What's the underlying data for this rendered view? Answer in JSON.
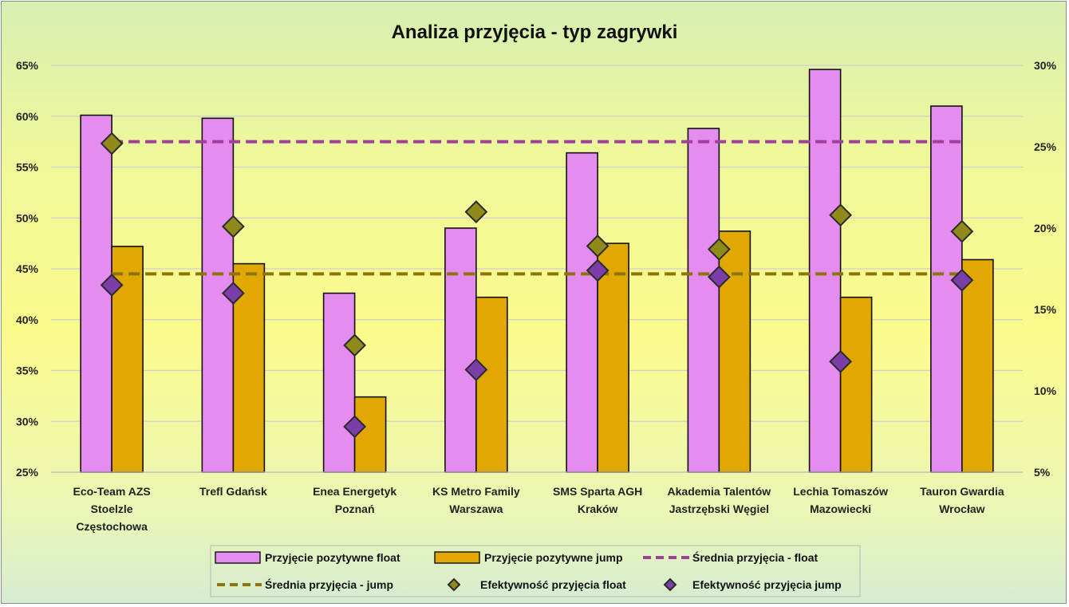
{
  "chart_data": {
    "type": "bar",
    "title": "Analiza przyjęcia - typ zagrywki",
    "categories": [
      [
        "Eco-Team AZS",
        "Stoelzle",
        "Częstochowa"
      ],
      [
        "Trefl Gdańsk"
      ],
      [
        "Enea Energetyk",
        "Poznań"
      ],
      [
        "KS Metro Family",
        "Warszawa"
      ],
      [
        "SMS Sparta AGH",
        "Kraków"
      ],
      [
        "Akademia Talentów",
        "Jastrzębski Węgiel"
      ],
      [
        "Lechia Tomaszów",
        "Mazowiecki"
      ],
      [
        "Tauron Gwardia",
        "Wrocław"
      ]
    ],
    "ylim_left": [
      0.25,
      0.65
    ],
    "yticks_left": [
      "25%",
      "30%",
      "35%",
      "40%",
      "45%",
      "50%",
      "55%",
      "60%",
      "65%"
    ],
    "ylim_right": [
      0.05,
      0.3
    ],
    "yticks_right": [
      "5%",
      "10%",
      "15%",
      "20%",
      "25%",
      "30%"
    ],
    "grid": true,
    "legend_position": "bottom",
    "series": [
      {
        "name": "Przyjęcie pozytywne float",
        "kind": "bar",
        "axis": "left",
        "color": "#e58cf0",
        "values": [
          0.601,
          0.598,
          0.426,
          0.49,
          0.564,
          0.588,
          0.646,
          0.61
        ]
      },
      {
        "name": "Przyjęcie pozytywne jump",
        "kind": "bar",
        "axis": "left",
        "color": "#e0a800",
        "values": [
          0.472,
          0.455,
          0.324,
          0.422,
          0.475,
          0.487,
          0.422,
          0.459
        ]
      },
      {
        "name": "Średnia przyjęcia - float",
        "kind": "dashed-line",
        "axis": "left",
        "color": "#a0409a",
        "values": [
          0.575,
          0.575,
          0.575,
          0.575,
          0.575,
          0.575,
          0.575,
          0.575
        ]
      },
      {
        "name": "Średnia przyjęcia - jump",
        "kind": "dashed-line",
        "axis": "left",
        "color": "#8c7408",
        "values": [
          0.445,
          0.445,
          0.445,
          0.445,
          0.445,
          0.445,
          0.445,
          0.445
        ]
      },
      {
        "name": "Efektywność przyjęcia float",
        "kind": "marker",
        "axis": "right",
        "color": "#8f8a1a",
        "values": [
          0.252,
          0.201,
          0.128,
          0.21,
          0.189,
          0.187,
          0.208,
          0.198
        ]
      },
      {
        "name": "Efektywność przyjęcia jump",
        "kind": "marker",
        "axis": "right",
        "color": "#7b3ea8",
        "values": [
          0.165,
          0.16,
          0.078,
          0.113,
          0.174,
          0.17,
          0.118,
          0.168
        ]
      }
    ]
  }
}
